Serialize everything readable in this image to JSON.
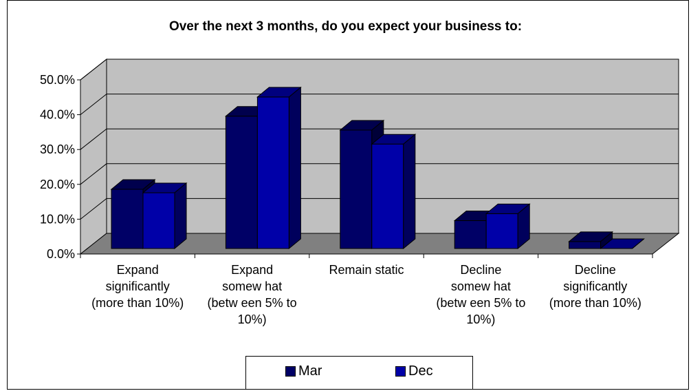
{
  "chart_data": {
    "type": "bar",
    "title": "Over the next 3 months, do you expect your business to:",
    "categories": [
      [
        "Expand",
        "significantly",
        "(more than 10%)"
      ],
      [
        "Expand",
        "somew hat",
        "(betw een 5% to",
        "10%)"
      ],
      [
        "Remain static"
      ],
      [
        "Decline",
        "somew hat",
        "(betw een 5% to",
        "10%)"
      ],
      [
        "Decline",
        "significantly",
        "(more than 10%)"
      ]
    ],
    "series": [
      {
        "name": "Mar",
        "values": [
          17.0,
          38.0,
          34.0,
          8.0,
          2.0
        ],
        "color": "#000066"
      },
      {
        "name": "Dec",
        "values": [
          16.0,
          43.5,
          30.0,
          10.0,
          0.0
        ],
        "color": "#0000A8"
      }
    ],
    "y_ticks": [
      "0.0%",
      "10.0%",
      "20.0%",
      "30.0%",
      "40.0%",
      "50.0%"
    ],
    "ylim": [
      0,
      50
    ],
    "grid": true,
    "legend_position": "bottom",
    "colors": {
      "wall": "#C0C0C0",
      "floor": "#808080",
      "gridline": "#000000"
    }
  }
}
